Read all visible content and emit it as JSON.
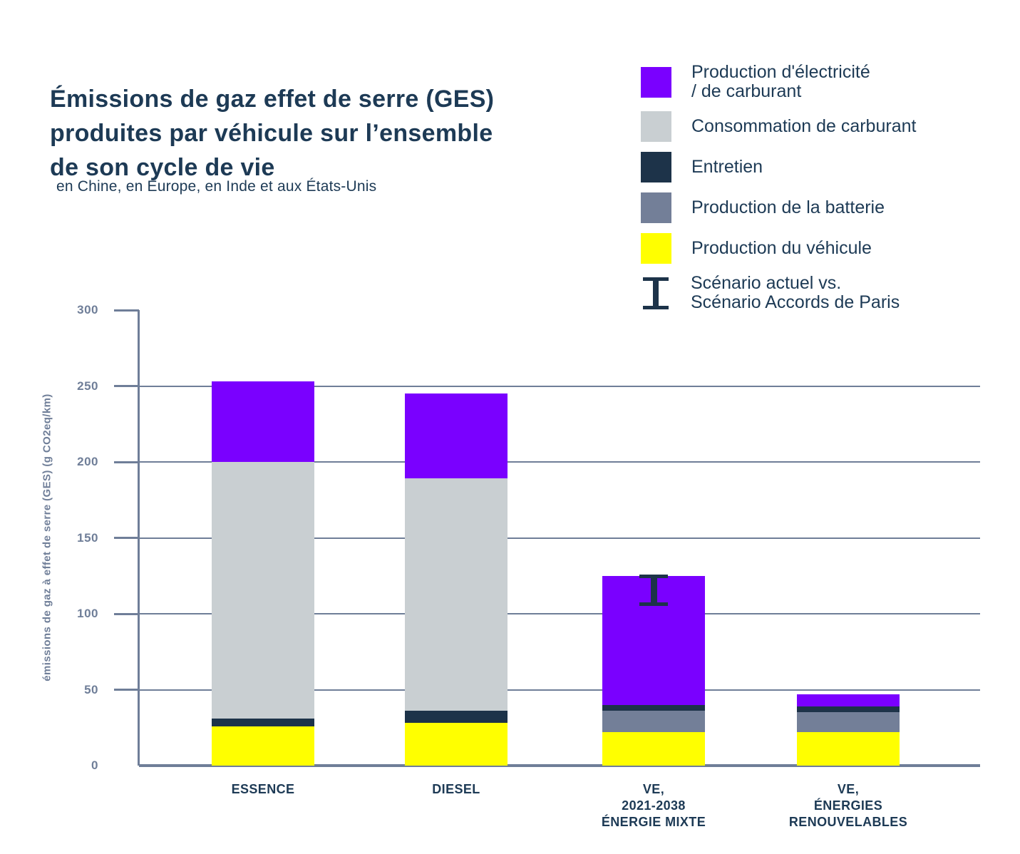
{
  "page": {
    "title": "Émissions de gaz effet de serre (GES)\nproduites par véhicule sur l’ensemble\nde son cycle de vie",
    "subtitle": "en Chine, en Europe, en Inde et aux États-Unis"
  },
  "colors": {
    "electricity": "#7a00ff",
    "fuel_consumption": "#c9cfd2",
    "maintenance": "#1d3349",
    "battery": "#737f98",
    "vehicle": "#ffff00",
    "axis": "#6f7e98",
    "text": "#1d3a55",
    "background": "#ffffff"
  },
  "legend": {
    "items": [
      {
        "label": "Production d'électricité\n/ de carburant",
        "swatch": "square",
        "color": "#7a00ff"
      },
      {
        "label": "Consommation de carburant",
        "swatch": "square",
        "color": "#c9cfd2"
      },
      {
        "label": "Entretien",
        "swatch": "square",
        "color": "#1d3349"
      },
      {
        "label": "Production de la batterie",
        "swatch": "square",
        "color": "#737f98"
      },
      {
        "label": "Production du véhicule",
        "swatch": "square",
        "color": "#ffff00"
      },
      {
        "label": "Scénario actuel vs.\nScénario Accords de Paris",
        "swatch": "errorbar",
        "color": "#1d3349"
      }
    ]
  },
  "chart_data": {
    "type": "bar",
    "stacked": true,
    "title": "Émissions de gaz effet de serre (GES) produites par véhicule sur l’ensemble de son cycle de vie",
    "subtitle": "en Chine, en Europe, en Inde et aux États-Unis",
    "xlabel": "",
    "ylabel": "émissions de gaz à effet de serre (GES) (g CO2eq/km)",
    "ylim": [
      0,
      300
    ],
    "yticks": [
      0,
      50,
      100,
      150,
      200,
      250,
      300
    ],
    "grid": "horizontal",
    "legend_position": "top-right",
    "categories": [
      "ESSENCE",
      "DIESEL",
      "VE,\n2021-2038\nÉNERGIE MIXTE",
      "VE,\nÉNERGIES\nRENOUVELABLES"
    ],
    "series": [
      {
        "name": "Production du véhicule",
        "color": "#ffff00",
        "values": [
          26,
          28,
          22,
          22
        ]
      },
      {
        "name": "Production de la batterie",
        "color": "#737f98",
        "values": [
          0,
          0,
          14,
          13
        ]
      },
      {
        "name": "Entretien",
        "color": "#1d3349",
        "values": [
          5,
          8,
          4,
          4
        ]
      },
      {
        "name": "Consommation de carburant",
        "color": "#c9cfd2",
        "values": [
          169,
          153,
          0,
          0
        ]
      },
      {
        "name": "Production d'électricité / de carburant",
        "color": "#7a00ff",
        "values": [
          53,
          56,
          85,
          8
        ]
      }
    ],
    "error_bar": {
      "label": "Scénario actuel vs. Scénario Accords de Paris",
      "category": "VE, 2021-2038 ÉNERGIE MIXTE",
      "category_index": 2,
      "from": 106,
      "to": 125,
      "color": "#1d3349"
    }
  }
}
